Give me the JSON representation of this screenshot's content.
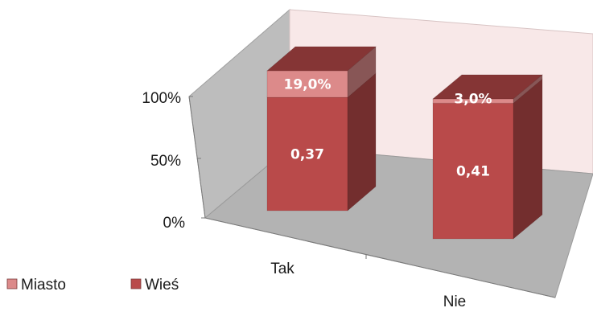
{
  "chart_data": {
    "type": "bar",
    "stacked": true,
    "percent_stacked": true,
    "three_d": true,
    "categories": [
      "Tak",
      "Nie"
    ],
    "series": [
      {
        "name": "Wieś",
        "values": [
          0.37,
          0.41
        ],
        "labels": [
          "0,37",
          "0,41"
        ],
        "color": "#b94a4a"
      },
      {
        "name": "Miasto",
        "values": [
          19.0,
          3.0
        ],
        "labels": [
          "19,0%",
          "3,0%"
        ],
        "color": "#dc8a8a"
      }
    ],
    "y_ticks": [
      "0%",
      "50%",
      "100%"
    ],
    "ylim": [
      0,
      100
    ],
    "legend": {
      "placement": "bottom-left",
      "entries": [
        {
          "name": "Miasto",
          "color": "#dc8a8a"
        },
        {
          "name": "Wieś",
          "color": "#b94a4a"
        }
      ]
    },
    "grid": false,
    "colors": {
      "back_wall": "#f8e8e8",
      "side_wall": "#bdbdbd",
      "floor": "#b3b3b3"
    }
  }
}
